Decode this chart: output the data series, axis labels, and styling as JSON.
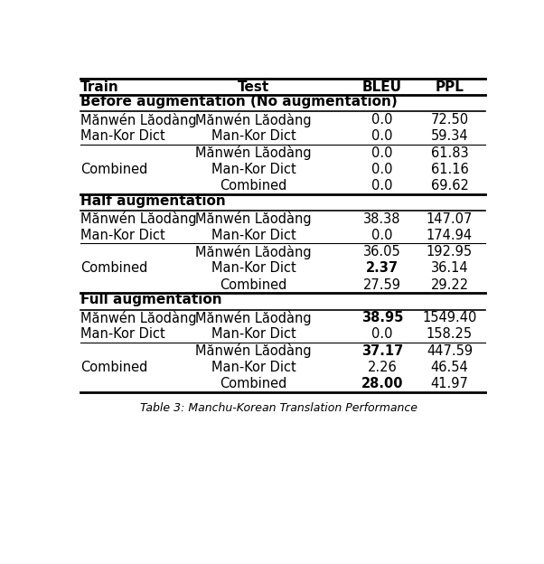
{
  "headers": [
    "Train",
    "Test",
    "BLEU",
    "PPL"
  ],
  "sections": [
    {
      "section_header": "Before augmentation (No augmentation)",
      "rows": [
        {
          "train": "Mănwén Lăodàng",
          "test": "Mănwén Lăodàng",
          "bleu": "0.0",
          "ppl": "72.50",
          "bleu_bold": false,
          "ppl_bold": false
        },
        {
          "train": "Man-Kor Dict",
          "test": "Man-Kor Dict",
          "bleu": "0.0",
          "ppl": "59.34",
          "bleu_bold": false,
          "ppl_bold": false
        },
        {
          "train": "Combined",
          "test": "Mănwén Lăodàng",
          "bleu": "0.0",
          "ppl": "61.83",
          "bleu_bold": false,
          "ppl_bold": false
        },
        {
          "train": "",
          "test": "Man-Kor Dict",
          "bleu": "0.0",
          "ppl": "61.16",
          "bleu_bold": false,
          "ppl_bold": false
        },
        {
          "train": "",
          "test": "Combined",
          "bleu": "0.0",
          "ppl": "69.62",
          "bleu_bold": false,
          "ppl_bold": false
        }
      ]
    },
    {
      "section_header": "Half augmentation",
      "rows": [
        {
          "train": "Mănwén Lăodàng",
          "test": "Mănwén Lăodàng",
          "bleu": "38.38",
          "ppl": "147.07",
          "bleu_bold": false,
          "ppl_bold": false
        },
        {
          "train": "Man-Kor Dict",
          "test": "Man-Kor Dict",
          "bleu": "0.0",
          "ppl": "174.94",
          "bleu_bold": false,
          "ppl_bold": false
        },
        {
          "train": "Combined",
          "test": "Mănwén Lăodàng",
          "bleu": "36.05",
          "ppl": "192.95",
          "bleu_bold": false,
          "ppl_bold": false
        },
        {
          "train": "",
          "test": "Man-Kor Dict",
          "bleu": "2.37",
          "ppl": "36.14",
          "bleu_bold": true,
          "ppl_bold": false
        },
        {
          "train": "",
          "test": "Combined",
          "bleu": "27.59",
          "ppl": "29.22",
          "bleu_bold": false,
          "ppl_bold": false
        }
      ]
    },
    {
      "section_header": "Full augmentation",
      "rows": [
        {
          "train": "Mănwén Lăodàng",
          "test": "Mănwén Lăodàng",
          "bleu": "38.95",
          "ppl": "1549.40",
          "bleu_bold": true,
          "ppl_bold": false
        },
        {
          "train": "Man-Kor Dict",
          "test": "Man-Kor Dict",
          "bleu": "0.0",
          "ppl": "158.25",
          "bleu_bold": false,
          "ppl_bold": false
        },
        {
          "train": "Combined",
          "test": "Mănwén Lăodàng",
          "bleu": "37.17",
          "ppl": "447.59",
          "bleu_bold": true,
          "ppl_bold": false
        },
        {
          "train": "",
          "test": "Man-Kor Dict",
          "bleu": "2.26",
          "ppl": "46.54",
          "bleu_bold": false,
          "ppl_bold": false
        },
        {
          "train": "",
          "test": "Combined",
          "bleu": "28.00",
          "ppl": "41.97",
          "bleu_bold": true,
          "ppl_bold": false
        }
      ]
    }
  ],
  "caption": "Table 3: Manchu-Korean Translation Performance",
  "font_size": 10.5,
  "fig_width": 6.02,
  "fig_height": 6.24,
  "dpi": 100
}
